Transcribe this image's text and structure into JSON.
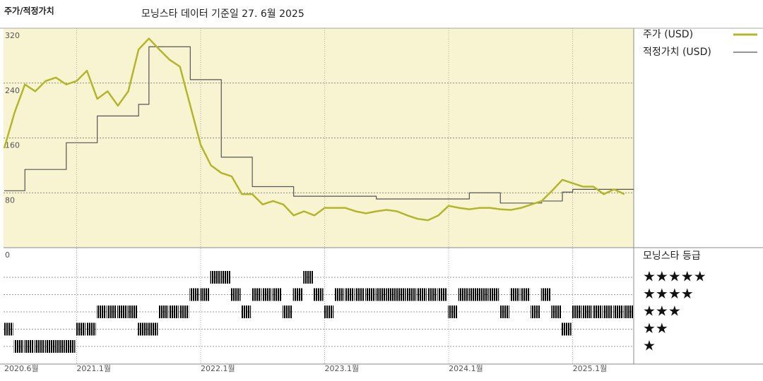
{
  "chart_data": {
    "type": "line",
    "title": "주가/적정가치",
    "subtitle": "모닝스타 데이터 기준일 27. 6월 2025",
    "x": [
      "2020-06",
      "2020-07",
      "2020-08",
      "2020-09",
      "2020-10",
      "2020-11",
      "2020-12",
      "2021-01",
      "2021-02",
      "2021-03",
      "2021-04",
      "2021-05",
      "2021-06",
      "2021-07",
      "2021-08",
      "2021-09",
      "2021-10",
      "2021-11",
      "2021-12",
      "2022-01",
      "2022-02",
      "2022-03",
      "2022-04",
      "2022-05",
      "2022-06",
      "2022-07",
      "2022-08",
      "2022-09",
      "2022-10",
      "2022-11",
      "2022-12",
      "2023-01",
      "2023-02",
      "2023-03",
      "2023-04",
      "2023-05",
      "2023-06",
      "2023-07",
      "2023-08",
      "2023-09",
      "2023-10",
      "2023-11",
      "2023-12",
      "2024-01",
      "2024-02",
      "2024-03",
      "2024-04",
      "2024-05",
      "2024-06",
      "2024-07",
      "2024-08",
      "2024-09",
      "2024-10",
      "2024-11",
      "2024-12",
      "2025-01",
      "2025-02",
      "2025-03",
      "2025-04",
      "2025-05",
      "2025-06"
    ],
    "series": [
      {
        "name": "주가 (USD)",
        "color": "#b3b52b",
        "step": false,
        "values": [
          145,
          197,
          238,
          228,
          243,
          248,
          238,
          243,
          258,
          217,
          228,
          207,
          228,
          289,
          305,
          289,
          274,
          264,
          207,
          150,
          120,
          109,
          104,
          78,
          78,
          63,
          68,
          63,
          47,
          53,
          47,
          58,
          58,
          58,
          53,
          50,
          53,
          55,
          53,
          47,
          42,
          40,
          47,
          61,
          58,
          56,
          58,
          58,
          56,
          55,
          58,
          63,
          68,
          83,
          99,
          94,
          89,
          89,
          78,
          85,
          78
        ]
      },
      {
        "name": "적정가치 (USD)",
        "color": "#555555",
        "step": true,
        "values": [
          83,
          83,
          114,
          114,
          114,
          114,
          153,
          153,
          153,
          192,
          192,
          192,
          192,
          209,
          293,
          293,
          293,
          293,
          245,
          245,
          245,
          132,
          132,
          132,
          89,
          89,
          89,
          89,
          75,
          75,
          75,
          75,
          75,
          75,
          75,
          75,
          71,
          71,
          71,
          71,
          71,
          71,
          71,
          71,
          71,
          80,
          80,
          80,
          65,
          65,
          65,
          65,
          68,
          68,
          81,
          85,
          85,
          85,
          85,
          85,
          85
        ]
      }
    ],
    "ylim": [
      0,
      320
    ],
    "yticks": [
      320,
      240,
      160,
      80,
      0
    ],
    "xticks": [
      {
        "value": "2020-06",
        "label": "2020.6월"
      },
      {
        "value": "2021-01",
        "label": "2021.1월"
      },
      {
        "value": "2022-01",
        "label": "2022.1월"
      },
      {
        "value": "2023-01",
        "label": "2023.1월"
      },
      {
        "value": "2024-01",
        "label": "2024.1월"
      },
      {
        "value": "2025-01",
        "label": "2025.1월"
      }
    ],
    "grid": true,
    "background": "#f8f4d2",
    "ratings": {
      "title": "모닝스타 등급",
      "levels": [
        "★",
        "★★",
        "★★★",
        "★★★★",
        "★★★★★"
      ],
      "color": "#333333",
      "top_color": "#3f8a6b",
      "values": [
        2,
        1,
        1,
        1,
        1,
        1,
        1,
        2,
        2,
        3,
        3,
        3,
        3,
        2,
        2,
        3,
        3,
        3,
        4,
        4,
        5,
        5,
        4,
        3,
        4,
        4,
        4,
        3,
        4,
        5,
        4,
        3,
        4,
        4,
        4,
        4,
        4,
        4,
        4,
        4,
        4,
        4,
        4,
        3,
        4,
        4,
        4,
        4,
        3,
        4,
        4,
        3,
        4,
        3,
        2,
        3,
        3,
        3,
        3,
        3,
        3
      ]
    }
  }
}
